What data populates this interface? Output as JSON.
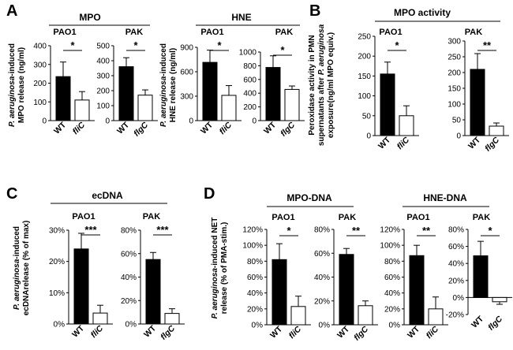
{
  "figure": {
    "panels": [
      {
        "letter": "A",
        "title": "MPO",
        "ylabel": [
          "P. aeruginosa-induced",
          "MPO release (ng/ml)"
        ],
        "ylabel_italic": "P. aeruginosa"
      },
      {
        "letter": "",
        "title": "HNE",
        "ylabel": [
          "P. aeruginosa-induced",
          "HNE release (ng/ml)"
        ],
        "ylabel_italic": "P. aeruginosa"
      },
      {
        "letter": "B",
        "title": "MPO activity",
        "ylabel": [
          "Peroxidase activity in PMN",
          "supernatants after P. aeruginosa",
          "exposure(ng/ml MPO equiv.)"
        ],
        "ylabel_italic": "P. aeruginosa"
      },
      {
        "letter": "C",
        "title": "ecDNA",
        "ylabel": [
          "P. aeruginosa-induced",
          "ecDNArelease (% of max)"
        ],
        "ylabel_italic": "P. aeruginosa"
      },
      {
        "letter": "D",
        "title": "MPO-DNA",
        "ylabel": [
          "P. aeruginosa-induced NET",
          "release (% of PMA-stim.)"
        ],
        "ylabel_italic": "P. aeruginosa"
      },
      {
        "letter": "",
        "title": "HNE-DNA",
        "ylabel": [],
        "ylabel_italic": ""
      }
    ]
  },
  "chart_data": [
    {
      "type": "bar",
      "panel": "A",
      "group": "MPO",
      "strain": "PAO1",
      "categories": [
        "WT",
        "fliC"
      ],
      "values": [
        235,
        110
      ],
      "errors": [
        78,
        45
      ],
      "yticks": [
        "0",
        "100",
        "200",
        "300",
        "400"
      ],
      "ylim": [
        0,
        400
      ],
      "significance": "*"
    },
    {
      "type": "bar",
      "panel": "A",
      "group": "MPO",
      "strain": "PAK",
      "categories": [
        "WT",
        "flgC"
      ],
      "values": [
        360,
        170
      ],
      "errors": [
        60,
        35
      ],
      "yticks": [
        "0",
        "100",
        "200",
        "300",
        "400",
        "500"
      ],
      "ylim": [
        0,
        500
      ],
      "significance": "*"
    },
    {
      "type": "bar",
      "panel": "A",
      "group": "HNE",
      "strain": "PAO1",
      "categories": [
        "WT",
        "fliC"
      ],
      "values": [
        715,
        310
      ],
      "errors": [
        150,
        120
      ],
      "yticks": [
        "0",
        "300",
        "600",
        "900"
      ],
      "ylim": [
        0,
        900
      ],
      "significance": "*"
    },
    {
      "type": "bar",
      "panel": "A",
      "group": "HNE",
      "strain": "PAK",
      "categories": [
        "WT",
        "flgC"
      ],
      "values": [
        775,
        455
      ],
      "errors": [
        170,
        50
      ],
      "yticks": [
        "0",
        "200",
        "400",
        "600",
        "800",
        "1000"
      ],
      "ylim": [
        0,
        1000
      ],
      "significance": "*"
    },
    {
      "type": "bar",
      "panel": "B",
      "group": "MPO activity",
      "strain": "PAO1",
      "categories": [
        "WT",
        "fliC"
      ],
      "values": [
        155,
        50
      ],
      "errors": [
        30,
        25
      ],
      "yticks": [
        "0",
        "50",
        "100",
        "150",
        "200",
        "250"
      ],
      "ylim": [
        0,
        250
      ],
      "significance": "*"
    },
    {
      "type": "bar",
      "panel": "B",
      "group": "MPO activity",
      "strain": "PAK",
      "categories": [
        "WT",
        "flgC"
      ],
      "values": [
        210,
        30
      ],
      "errors": [
        50,
        10
      ],
      "yticks": [
        "0",
        "50",
        "100",
        "150",
        "200",
        "250",
        "300"
      ],
      "ylim": [
        0,
        300
      ],
      "significance": "**"
    },
    {
      "type": "bar",
      "panel": "C",
      "group": "ecDNA",
      "strain": "PAO1",
      "categories": [
        "WT",
        "fliC"
      ],
      "values": [
        24,
        3.5
      ],
      "errors": [
        5,
        2.5
      ],
      "yticks": [
        "0%",
        "10%",
        "20%",
        "30%"
      ],
      "ylim": [
        0,
        30
      ],
      "significance": "***"
    },
    {
      "type": "bar",
      "panel": "C",
      "group": "ecDNA",
      "strain": "PAK",
      "categories": [
        "WT",
        "flgC"
      ],
      "values": [
        55,
        9
      ],
      "errors": [
        6,
        4
      ],
      "yticks": [
        "0%",
        "20%",
        "40%",
        "60%",
        "80%"
      ],
      "ylim": [
        0,
        80
      ],
      "significance": "***"
    },
    {
      "type": "bar",
      "panel": "D",
      "group": "MPO-DNA",
      "strain": "PAO1",
      "categories": [
        "WT",
        "fliC"
      ],
      "values": [
        82,
        23
      ],
      "errors": [
        20,
        13
      ],
      "yticks": [
        "0%",
        "20%",
        "40%",
        "60%",
        "80%",
        "100%",
        "120%"
      ],
      "ylim": [
        0,
        120
      ],
      "significance": "*"
    },
    {
      "type": "bar",
      "panel": "D",
      "group": "MPO-DNA",
      "strain": "PAK",
      "categories": [
        "WT",
        "flgC"
      ],
      "values": [
        59,
        16
      ],
      "errors": [
        5,
        4
      ],
      "yticks": [
        "0%",
        "20%",
        "40%",
        "60%",
        "80%"
      ],
      "ylim": [
        0,
        80
      ],
      "significance": "**"
    },
    {
      "type": "bar",
      "panel": "D",
      "group": "HNE-DNA",
      "strain": "PAO1",
      "categories": [
        "WT",
        "fliC"
      ],
      "values": [
        87,
        20
      ],
      "errors": [
        13,
        15
      ],
      "yticks": [
        "0%",
        "20%",
        "40%",
        "60%",
        "80%",
        "100%",
        "120%"
      ],
      "ylim": [
        0,
        120
      ],
      "significance": "**"
    },
    {
      "type": "bar",
      "panel": "D",
      "group": "HNE-DNA",
      "strain": "PAK",
      "categories": [
        "WT",
        "flgC"
      ],
      "values": [
        49,
        -5
      ],
      "errors": [
        17,
        3
      ],
      "yticks": [
        "-20%",
        "0%",
        "20%",
        "40%",
        "60%",
        "80%"
      ],
      "ylim": [
        -20,
        80
      ],
      "significance": "*"
    }
  ]
}
